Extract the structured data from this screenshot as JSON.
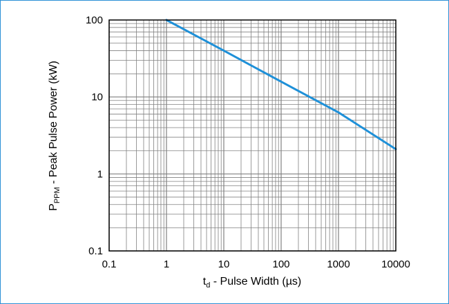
{
  "chart_data": {
    "type": "line",
    "x_scale": "log",
    "y_scale": "log",
    "xlim": [
      0.1,
      10000
    ],
    "ylim": [
      0.1,
      100
    ],
    "grid": true,
    "xlabel": {
      "main": "t",
      "subscript": "d",
      "rest": " - Pulse Width (µs)"
    },
    "ylabel": {
      "main": "P",
      "subscript": "PPM",
      "rest": " - Peak Pulse Power (kW)"
    },
    "x_ticks": [
      {
        "value": 0.1,
        "label": "0.1"
      },
      {
        "value": 1,
        "label": "1"
      },
      {
        "value": 10,
        "label": "10"
      },
      {
        "value": 100,
        "label": "100"
      },
      {
        "value": 1000,
        "label": "1000"
      },
      {
        "value": 10000,
        "label": "10000"
      }
    ],
    "y_ticks": [
      {
        "value": 0.1,
        "label": "0.1"
      },
      {
        "value": 1,
        "label": "1"
      },
      {
        "value": 10,
        "label": "10"
      },
      {
        "value": 100,
        "label": "100"
      }
    ],
    "series": [
      {
        "color": "#1e90d8",
        "points": [
          {
            "x": 1,
            "y": 100
          },
          {
            "x": 10,
            "y": 40
          },
          {
            "x": 100,
            "y": 15.8
          },
          {
            "x": 1000,
            "y": 6.3
          },
          {
            "x": 10000,
            "y": 2.1
          }
        ]
      }
    ],
    "colors": {
      "grid": "#808080",
      "axis": "#000000",
      "frame_border": "#2a8fd6"
    }
  }
}
